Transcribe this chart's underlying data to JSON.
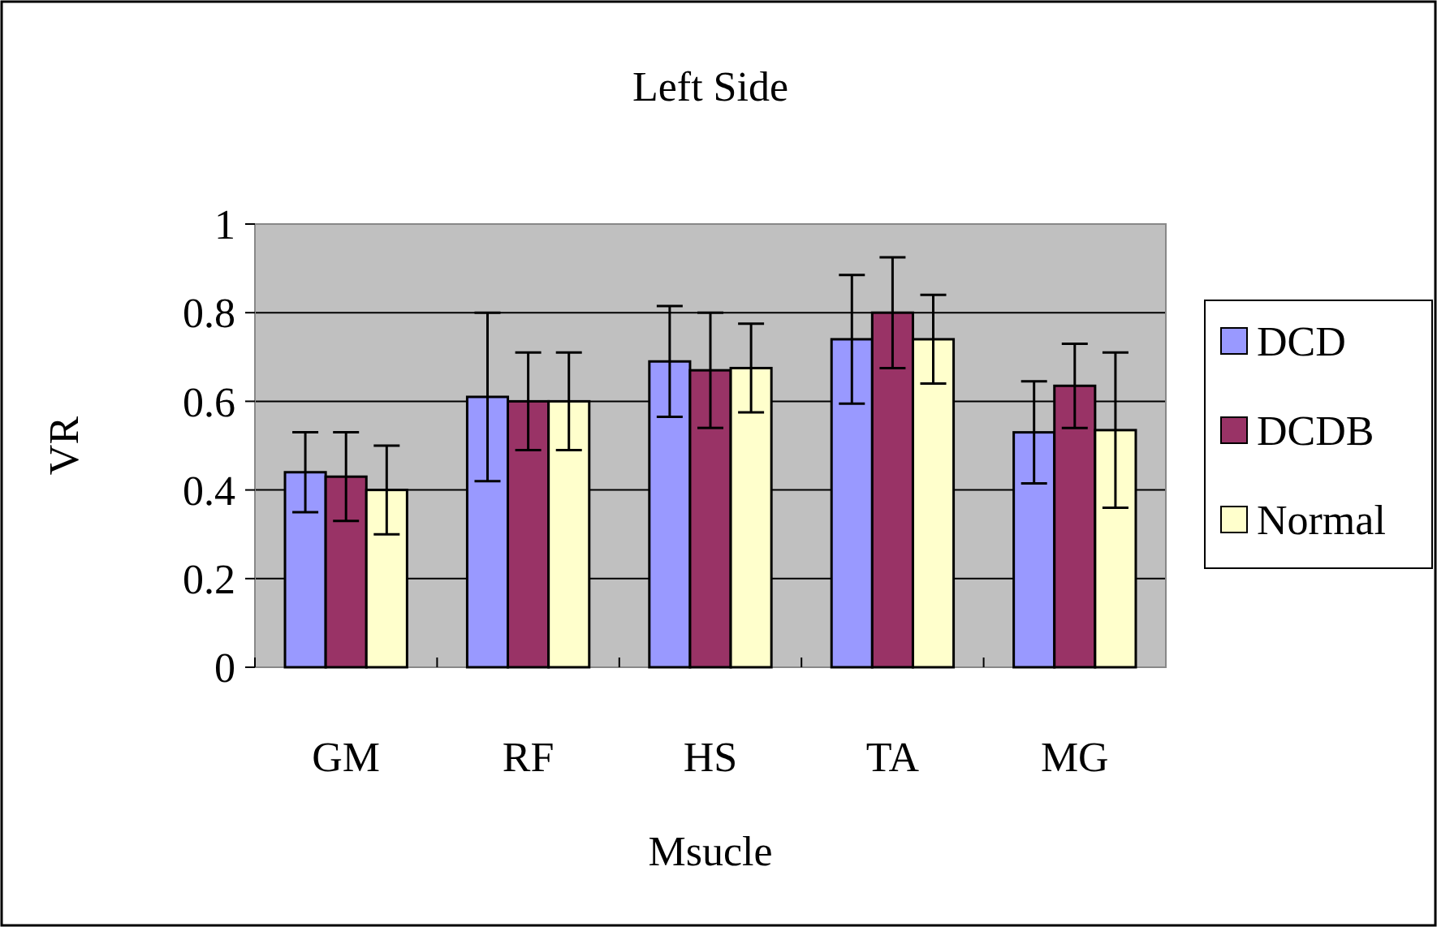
{
  "chart_data": {
    "type": "bar",
    "title": "Left Side",
    "xlabel": "Msucle",
    "ylabel": "VR",
    "categories": [
      "GM",
      "RF",
      "HS",
      "TA",
      "MG"
    ],
    "series": [
      {
        "name": "DCD",
        "color": "#9999ff",
        "values": [
          0.44,
          0.61,
          0.69,
          0.74,
          0.53
        ],
        "errors": [
          0.09,
          0.19,
          0.125,
          0.145,
          0.115
        ]
      },
      {
        "name": "DCDB",
        "color": "#993366",
        "values": [
          0.43,
          0.6,
          0.67,
          0.8,
          0.635
        ],
        "errors": [
          0.1,
          0.11,
          0.13,
          0.125,
          0.095
        ]
      },
      {
        "name": "Normal",
        "color": "#ffffcc",
        "values": [
          0.4,
          0.6,
          0.675,
          0.74,
          0.535
        ],
        "errors": [
          0.1,
          0.11,
          0.1,
          0.1,
          0.175
        ]
      }
    ],
    "ylim": [
      0,
      1
    ],
    "yticks": [
      0,
      0.2,
      0.4,
      0.6,
      0.8,
      1
    ],
    "grid": "y",
    "legend": "right"
  }
}
